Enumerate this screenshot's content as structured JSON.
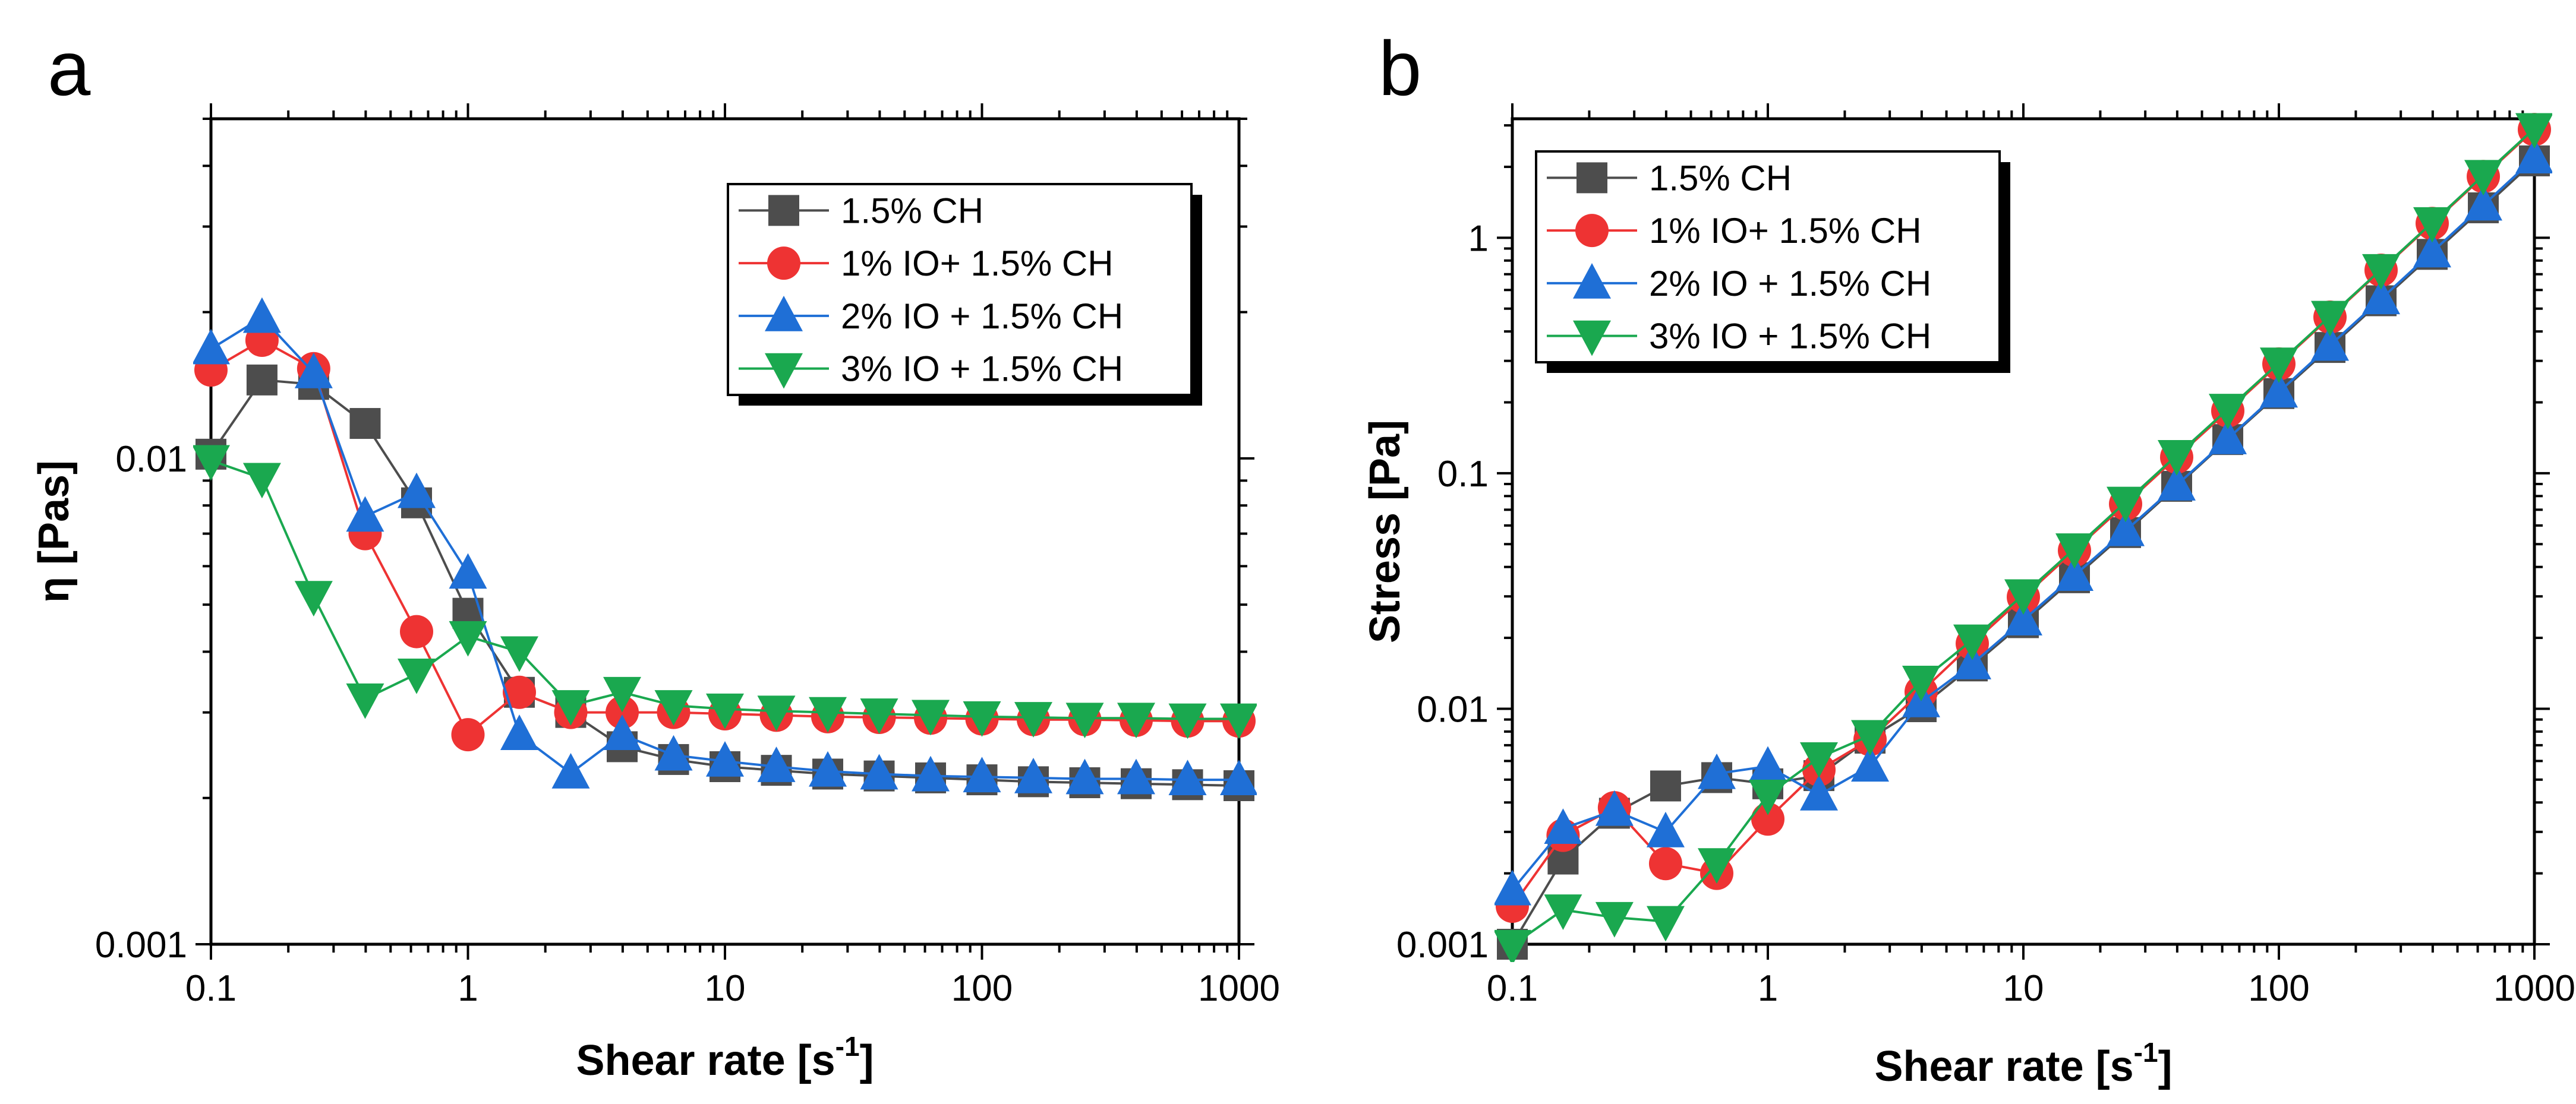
{
  "chart_data": [
    {
      "type": "line",
      "panel_label": "a",
      "xlabel": "Shear rate [s",
      "xlabel_sup": "-1",
      "xlabel_suffix": "]",
      "ylabel": "η [Pas]",
      "xscale": "log",
      "yscale": "log",
      "xlim": [
        0.1,
        1000
      ],
      "ylim": [
        0.001,
        0.05
      ],
      "xticks": [
        0.1,
        1,
        10,
        100,
        1000
      ],
      "xtick_labels": [
        "0.1",
        "1",
        "10",
        "100",
        "1000"
      ],
      "yticks": [
        0.001,
        0.01
      ],
      "ytick_labels": [
        "0.001",
        "0.01"
      ],
      "legend_position": "top-right",
      "x": [
        0.1,
        0.158,
        0.251,
        0.398,
        0.631,
        1,
        1.585,
        2.512,
        3.981,
        6.31,
        10,
        15.85,
        25.12,
        39.81,
        63.1,
        100,
        158.5,
        251.2,
        398.1,
        631,
        1000
      ],
      "series": [
        {
          "name": "1.5% CH",
          "color": "#4d4d4d",
          "marker": "square",
          "values": [
            0.0102,
            0.0145,
            0.0142,
            0.0118,
            0.0081,
            0.0048,
            0.0033,
            0.003,
            0.00255,
            0.0024,
            0.00232,
            0.00228,
            0.00224,
            0.00222,
            0.0022,
            0.00218,
            0.00216,
            0.00215,
            0.00214,
            0.00213,
            0.00212
          ]
        },
        {
          "name": "1% IO+ 1.5% CH",
          "color": "#ee3333",
          "marker": "circle",
          "values": [
            0.0152,
            0.0175,
            0.0153,
            0.007,
            0.0044,
            0.0027,
            0.0033,
            0.003,
            0.003,
            0.003,
            0.00298,
            0.00296,
            0.00294,
            0.00293,
            0.00292,
            0.00291,
            0.0029,
            0.0029,
            0.00289,
            0.00288,
            0.00288
          ]
        },
        {
          "name": "2% IO + 1.5% CH",
          "color": "#1f6fd6",
          "marker": "triangle-up",
          "values": [
            0.0168,
            0.0195,
            0.015,
            0.0076,
            0.0085,
            0.0058,
            0.0027,
            0.00225,
            0.0027,
            0.00245,
            0.00238,
            0.00232,
            0.00227,
            0.00224,
            0.00222,
            0.00221,
            0.0022,
            0.00219,
            0.00219,
            0.00218,
            0.00218
          ]
        },
        {
          "name": "3% IO + 1.5% CH",
          "color": "#1aa84f",
          "marker": "triangle-down",
          "values": [
            0.0099,
            0.0091,
            0.0052,
            0.0032,
            0.0036,
            0.0043,
            0.004,
            0.0031,
            0.0033,
            0.0031,
            0.00305,
            0.00302,
            0.003,
            0.00298,
            0.00296,
            0.00294,
            0.00293,
            0.00292,
            0.00292,
            0.00291,
            0.00291
          ]
        }
      ]
    },
    {
      "type": "line",
      "panel_label": "b",
      "xlabel": "Shear rate [s",
      "xlabel_sup": "-1",
      "xlabel_suffix": "]",
      "ylabel": "Stress [Pa]",
      "xscale": "log",
      "yscale": "log",
      "xlim": [
        0.1,
        1000
      ],
      "ylim": [
        0.001,
        3.2
      ],
      "xticks": [
        0.1,
        1,
        10,
        100,
        1000
      ],
      "xtick_labels": [
        "0.1",
        "1",
        "10",
        "100",
        "1000"
      ],
      "yticks": [
        0.001,
        0.01,
        0.1,
        1
      ],
      "ytick_labels": [
        "0.001",
        "0.01",
        "0.1",
        "1"
      ],
      "legend_position": "top-left",
      "x": [
        0.1,
        0.158,
        0.251,
        0.398,
        0.631,
        1,
        1.585,
        2.512,
        3.981,
        6.31,
        10,
        15.85,
        25.12,
        39.81,
        63.1,
        100,
        158.5,
        251.2,
        398.1,
        631,
        1000
      ],
      "series": [
        {
          "name": "1.5% CH",
          "color": "#4d4d4d",
          "marker": "square",
          "values": [
            0.001,
            0.0023,
            0.0036,
            0.0047,
            0.0051,
            0.0048,
            0.0052,
            0.0075,
            0.0102,
            0.0152,
            0.0232,
            0.036,
            0.056,
            0.088,
            0.139,
            0.218,
            0.342,
            0.54,
            0.85,
            1.34,
            2.12
          ]
        },
        {
          "name": "1% IO+ 1.5% CH",
          "color": "#ee3333",
          "marker": "circle",
          "values": [
            0.00145,
            0.0029,
            0.0038,
            0.0022,
            0.002,
            0.0034,
            0.0055,
            0.0074,
            0.0118,
            0.0189,
            0.0298,
            0.047,
            0.074,
            0.117,
            0.184,
            0.291,
            0.46,
            0.728,
            1.15,
            1.82,
            2.88
          ]
        },
        {
          "name": "2% IO + 1.5% CH",
          "color": "#1f6fd6",
          "marker": "triangle-up",
          "values": [
            0.0017,
            0.0031,
            0.0037,
            0.003,
            0.0053,
            0.0057,
            0.0043,
            0.0057,
            0.0107,
            0.0155,
            0.0238,
            0.0368,
            0.057,
            0.089,
            0.14,
            0.221,
            0.349,
            0.55,
            0.87,
            1.375,
            2.18
          ]
        },
        {
          "name": "3% IO + 1.5% CH",
          "color": "#1aa84f",
          "marker": "triangle-down",
          "values": [
            0.00099,
            0.0014,
            0.0013,
            0.00125,
            0.0022,
            0.0043,
            0.0062,
            0.0077,
            0.0131,
            0.0196,
            0.0305,
            0.0478,
            0.0754,
            0.119,
            0.187,
            0.294,
            0.464,
            0.733,
            1.16,
            1.84,
            2.91
          ]
        }
      ]
    }
  ]
}
